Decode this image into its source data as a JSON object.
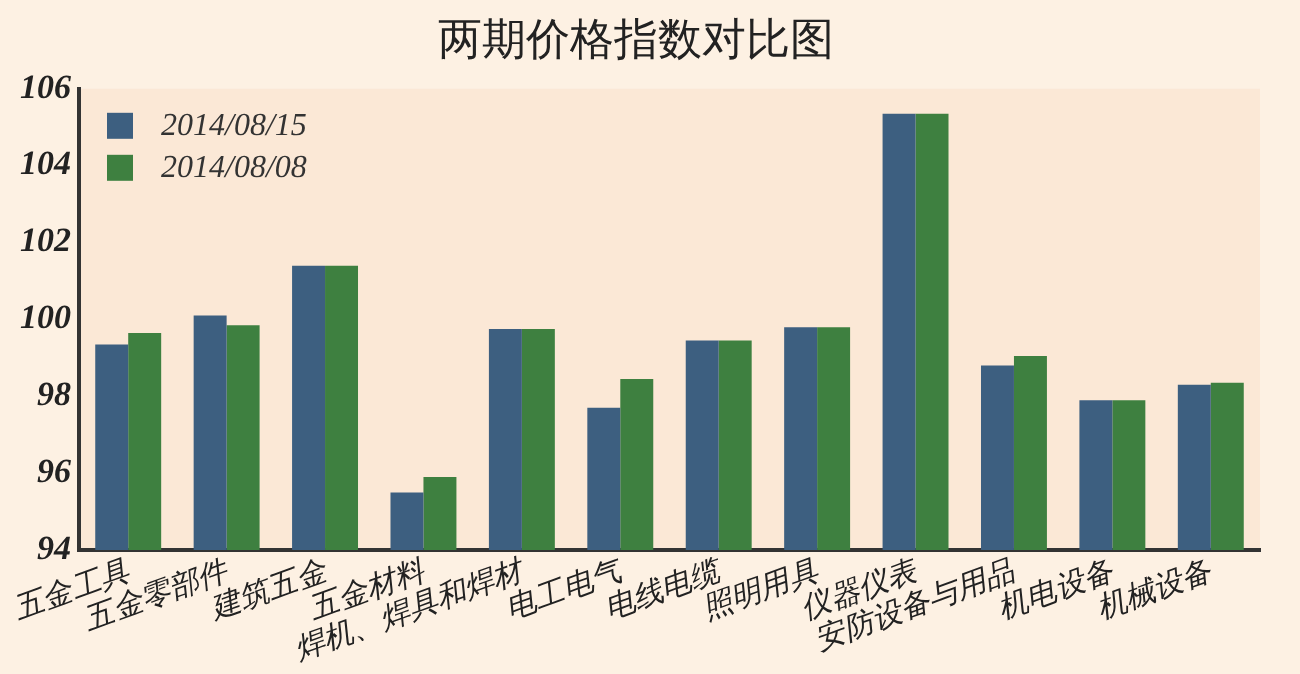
{
  "chart_data": {
    "type": "bar",
    "title": "两期价格指数对比图",
    "categories": [
      "五金工具",
      "五金零部件",
      "建筑五金",
      "五金材料",
      "焊机、焊具和焊材",
      "电工电气",
      "电线电缆",
      "照明用具",
      "仪器仪表",
      "安防设备与用品",
      "机电设备",
      "机械设备"
    ],
    "series": [
      {
        "name": "2014/08/15",
        "color": "#3d5f80",
        "values": [
          99.35,
          100.1,
          101.4,
          95.5,
          99.75,
          97.7,
          99.45,
          99.8,
          105.35,
          98.8,
          97.9,
          98.3
        ]
      },
      {
        "name": "2014/08/08",
        "color": "#3e8040",
        "values": [
          99.65,
          99.85,
          101.4,
          95.9,
          99.75,
          98.45,
          99.45,
          99.8,
          105.35,
          99.05,
          97.9,
          98.35
        ]
      }
    ],
    "ylim": [
      94,
      106
    ],
    "yticks": [
      94,
      96,
      98,
      100,
      102,
      104,
      106
    ],
    "grid": false,
    "legend": "top left"
  }
}
